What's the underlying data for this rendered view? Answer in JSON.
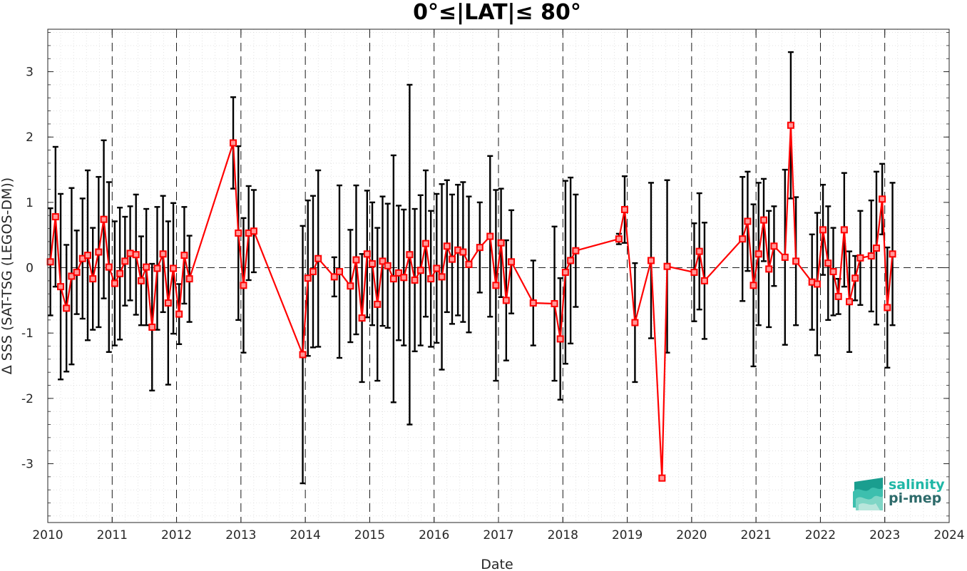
{
  "chart_data": {
    "type": "line",
    "title": "0°≤|LAT|≤ 80°",
    "xlabel": "Date",
    "ylabel": "Δ SSS (SAT-TSG (LEGOS-DM))",
    "xlim": [
      2010,
      2024
    ],
    "ylim": [
      -3.9,
      3.65
    ],
    "x_ticks": [
      "2010",
      "2011",
      "2012",
      "2013",
      "2014",
      "2015",
      "2016",
      "2017",
      "2018",
      "2019",
      "2020",
      "2021",
      "2022",
      "2023",
      "2024"
    ],
    "y_ticks": [
      3,
      2,
      1,
      0,
      -1,
      -2,
      -3
    ],
    "grid": true,
    "zero_line": true,
    "year_dividers": true,
    "series": [
      {
        "color": "#ff0000",
        "marker": "square",
        "errorbar_color": "#000000",
        "x": [
          2010.04,
          2010.12,
          2010.2,
          2010.29,
          2010.37,
          2010.45,
          2010.54,
          2010.62,
          2010.7,
          2010.79,
          2010.87,
          2010.95,
          2011.04,
          2011.12,
          2011.2,
          2011.28,
          2011.37,
          2011.45,
          2011.53,
          2011.62,
          2011.7,
          2011.79,
          2011.87,
          2011.95,
          2012.04,
          2012.12,
          2012.2,
          2012.88,
          2012.96,
          2013.04,
          2013.12,
          2013.2,
          2013.96,
          2014.04,
          2014.12,
          2014.2,
          2014.45,
          2014.53,
          2014.7,
          2014.79,
          2014.88,
          2014.96,
          2015.04,
          2015.12,
          2015.2,
          2015.28,
          2015.37,
          2015.45,
          2015.53,
          2015.62,
          2015.7,
          2015.79,
          2015.87,
          2015.95,
          2016.04,
          2016.12,
          2016.2,
          2016.28,
          2016.37,
          2016.45,
          2016.54,
          2016.71,
          2016.87,
          2016.96,
          2017.04,
          2017.12,
          2017.2,
          2017.54,
          2017.87,
          2017.96,
          2018.04,
          2018.12,
          2018.2,
          2018.87,
          2018.96,
          2019.12,
          2019.37,
          2019.54,
          2019.62,
          2020.04,
          2020.12,
          2020.2,
          2020.79,
          2020.87,
          2020.96,
          2021.04,
          2021.12,
          2021.2,
          2021.28,
          2021.45,
          2021.54,
          2021.62,
          2021.87,
          2021.95,
          2022.04,
          2022.12,
          2022.2,
          2022.28,
          2022.37,
          2022.45,
          2022.54,
          2022.62,
          2022.79,
          2022.87,
          2022.96,
          2023.04,
          2023.12
        ],
        "y": [
          0.09,
          0.78,
          -0.29,
          -0.62,
          -0.13,
          -0.07,
          0.14,
          0.19,
          -0.17,
          0.24,
          0.74,
          0.01,
          -0.24,
          -0.09,
          0.1,
          0.22,
          0.2,
          -0.2,
          0.01,
          -0.91,
          -0.01,
          0.21,
          -0.54,
          -0.01,
          -0.71,
          0.19,
          -0.17,
          1.91,
          0.53,
          -0.27,
          0.53,
          0.56,
          -1.33,
          -0.16,
          -0.06,
          0.14,
          -0.14,
          -0.06,
          -0.28,
          0.12,
          -0.77,
          0.21,
          0.06,
          -0.56,
          0.1,
          0.03,
          -0.17,
          -0.08,
          -0.15,
          0.2,
          -0.19,
          -0.04,
          0.37,
          -0.17,
          -0.01,
          -0.14,
          0.33,
          0.13,
          0.27,
          0.24,
          0.05,
          0.31,
          0.48,
          -0.27,
          0.38,
          -0.5,
          0.09,
          -0.54,
          -0.55,
          -1.09,
          -0.07,
          0.11,
          0.26,
          0.44,
          0.89,
          -0.84,
          0.11,
          -3.22,
          0.02,
          -0.07,
          0.25,
          -0.2,
          0.44,
          0.71,
          -0.27,
          0.21,
          0.73,
          -0.02,
          0.33,
          0.16,
          2.18,
          0.1,
          -0.22,
          -0.25,
          0.58,
          0.07,
          -0.06,
          -0.44,
          0.58,
          -0.52,
          -0.16,
          0.15,
          0.18,
          0.3,
          1.05,
          -0.61,
          0.21
        ],
        "errors": [
          0.82,
          1.07,
          1.42,
          0.97,
          1.35,
          0.64,
          0.92,
          1.3,
          0.78,
          1.15,
          1.21,
          1.3,
          0.95,
          1.01,
          0.68,
          0.72,
          0.92,
          0.68,
          0.89,
          0.97,
          0.94,
          0.89,
          1.25,
          1.0,
          0.46,
          0.74,
          0.66,
          0.7,
          1.33,
          1.03,
          0.72,
          0.63,
          1.97,
          1.19,
          1.16,
          1.35,
          0.3,
          1.32,
          0.86,
          1.14,
          0.98,
          0.97,
          0.94,
          1.17,
          0.99,
          0.95,
          1.89,
          1.03,
          1.04,
          2.6,
          1.09,
          1.15,
          1.12,
          1.04,
          1.14,
          1.42,
          1.01,
          0.99,
          1.0,
          1.07,
          1.04,
          0.69,
          1.23,
          1.46,
          0.83,
          0.92,
          0.79,
          0.65,
          1.18,
          0.93,
          1.4,
          1.27,
          0.86,
          0.08,
          0.51,
          0.91,
          1.19,
          0.0,
          1.32,
          0.75,
          0.89,
          0.89,
          0.95,
          0.76,
          1.24,
          1.09,
          0.63,
          0.89,
          0.61,
          1.34,
          1.12,
          0.98,
          0.73,
          1.09,
          0.69,
          0.87,
          0.67,
          0.27,
          0.87,
          0.77,
          0.34,
          0.72,
          0.85,
          1.17,
          0.54,
          0.92,
          1.09
        ]
      }
    ]
  },
  "logo": {
    "line1": "salinity",
    "line2": "pi-mep",
    "line1_color": "#1fb7a6",
    "line2_color": "#2e6b6b"
  }
}
